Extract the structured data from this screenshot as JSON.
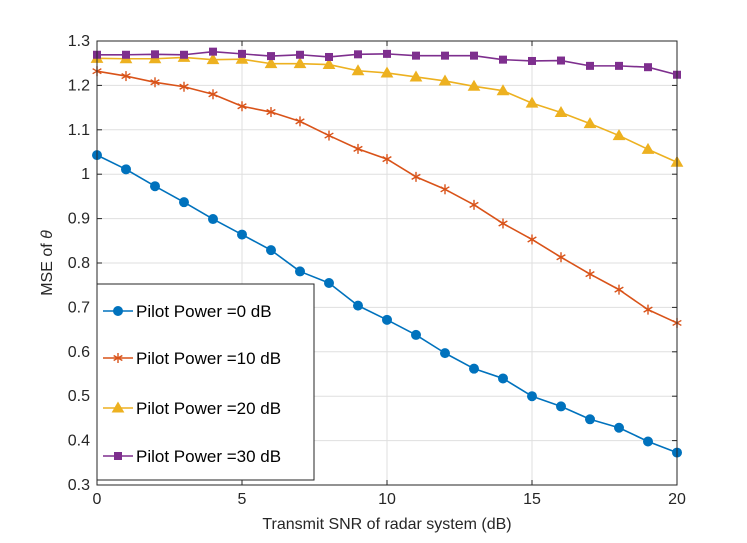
{
  "chart_data": {
    "type": "line",
    "title": "",
    "xlabel": "Transmit SNR of radar system (dB)",
    "ylabel_prefix": "MSE of ",
    "ylabel_symbol": "θ",
    "xlim": [
      0,
      20
    ],
    "ylim": [
      0.3,
      1.3
    ],
    "xticks": [
      0,
      5,
      10,
      15,
      20
    ],
    "xtick_labels": [
      "0",
      "5",
      "10",
      "15",
      "20"
    ],
    "yticks": [
      0.3,
      0.4,
      0.5,
      0.6,
      0.7,
      0.8,
      0.9,
      1.0,
      1.1,
      1.2,
      1.3
    ],
    "ytick_labels": [
      "0.3",
      "0.4",
      "0.5",
      "0.6",
      "0.7",
      "0.8",
      "0.9",
      "1",
      "1.1",
      "1.2",
      "1.3"
    ],
    "grid": true,
    "legend_position": "bottom-left",
    "x": [
      0,
      1,
      2,
      3,
      4,
      5,
      6,
      7,
      8,
      9,
      10,
      11,
      12,
      13,
      14,
      15,
      16,
      17,
      18,
      19,
      20
    ],
    "series": [
      {
        "name": "Pilot Power =0 dB",
        "color": "#0072BD",
        "marker": "circle",
        "values": [
          1.043,
          1.011,
          0.973,
          0.937,
          0.899,
          0.864,
          0.829,
          0.781,
          0.755,
          0.704,
          0.672,
          0.638,
          0.597,
          0.562,
          0.54,
          0.5,
          0.477,
          0.448,
          0.429,
          0.398,
          0.373
        ]
      },
      {
        "name": "Pilot Power =10 dB",
        "color": "#D95319",
        "marker": "asterisk",
        "values": [
          1.232,
          1.221,
          1.207,
          1.197,
          1.18,
          1.153,
          1.14,
          1.119,
          1.087,
          1.057,
          1.034,
          0.994,
          0.966,
          0.931,
          0.889,
          0.853,
          0.813,
          0.775,
          0.74,
          0.695,
          0.665
        ]
      },
      {
        "name": "Pilot Power =20 dB",
        "color": "#EDB120",
        "marker": "triangle",
        "values": [
          1.261,
          1.26,
          1.26,
          1.263,
          1.258,
          1.259,
          1.249,
          1.249,
          1.247,
          1.233,
          1.228,
          1.219,
          1.21,
          1.198,
          1.188,
          1.16,
          1.139,
          1.114,
          1.087,
          1.056,
          1.027
        ]
      },
      {
        "name": "Pilot Power =30 dB",
        "color": "#7E2F8E",
        "marker": "square",
        "values": [
          1.269,
          1.269,
          1.27,
          1.269,
          1.276,
          1.271,
          1.266,
          1.269,
          1.264,
          1.27,
          1.271,
          1.267,
          1.267,
          1.267,
          1.258,
          1.255,
          1.256,
          1.244,
          1.244,
          1.241,
          1.224
        ]
      }
    ]
  }
}
